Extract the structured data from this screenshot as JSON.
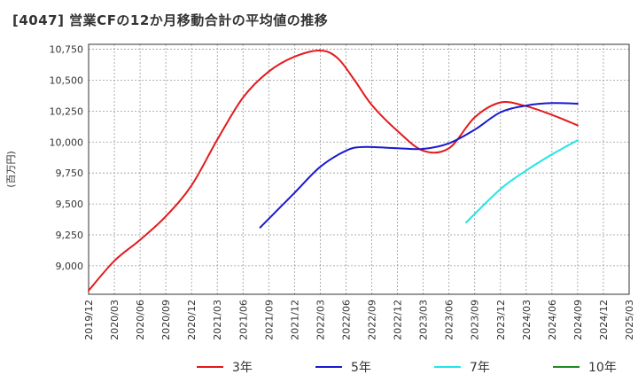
{
  "chart_data": {
    "type": "line",
    "title": "[4047]  営業CFの12か月移動合計の平均値の推移",
    "ylabel": "(百万円)",
    "xlabel": "",
    "ylim": [
      8770,
      10790
    ],
    "yticks": [
      9000,
      9250,
      9500,
      9750,
      10000,
      10250,
      10500,
      10750
    ],
    "ytick_labels": [
      "9,000",
      "9,250",
      "9,500",
      "9,750",
      "10,000",
      "10,250",
      "10,500",
      "10,750"
    ],
    "xticks": [
      "2019/12",
      "2020/03",
      "2020/06",
      "2020/09",
      "2020/12",
      "2021/03",
      "2021/06",
      "2021/09",
      "2021/12",
      "2022/03",
      "2022/06",
      "2022/09",
      "2022/12",
      "2023/03",
      "2023/06",
      "2023/09",
      "2023/12",
      "2024/03",
      "2024/06",
      "2024/09",
      "2024/12",
      "2025/03"
    ],
    "grid": true,
    "legend_position": "bottom",
    "series": [
      {
        "name": "3年",
        "color": "#e31a1c",
        "x": [
          "2019/12",
          "2020/03",
          "2020/06",
          "2020/09",
          "2020/12",
          "2021/03",
          "2021/06",
          "2021/09",
          "2021/12",
          "2022/03",
          "2022/05",
          "2022/07",
          "2022/09",
          "2022/12",
          "2023/03",
          "2023/06",
          "2023/09",
          "2023/12",
          "2024/03",
          "2024/06",
          "2024/09"
        ],
        "values": [
          8800,
          9040,
          9210,
          9400,
          9650,
          10020,
          10360,
          10570,
          10690,
          10740,
          10680,
          10500,
          10300,
          10090,
          9930,
          9950,
          10200,
          10320,
          10290,
          10220,
          10135
        ]
      },
      {
        "name": "5年",
        "color": "#1a1acd",
        "x": [
          "2021/08",
          "2021/12",
          "2022/03",
          "2022/06",
          "2022/08",
          "2022/12",
          "2023/03",
          "2023/06",
          "2023/09",
          "2023/12",
          "2024/03",
          "2024/06",
          "2024/09"
        ],
        "values": [
          9310,
          9590,
          9800,
          9930,
          9960,
          9950,
          9945,
          9990,
          10100,
          10240,
          10295,
          10315,
          10310
        ]
      },
      {
        "name": "7年",
        "color": "#22e5e5",
        "x": [
          "2023/08",
          "2023/12",
          "2024/03",
          "2024/06",
          "2024/09"
        ],
        "values": [
          9350,
          9620,
          9770,
          9900,
          10015
        ]
      },
      {
        "name": "10年",
        "color": "#228b22",
        "x": [],
        "values": []
      }
    ]
  }
}
